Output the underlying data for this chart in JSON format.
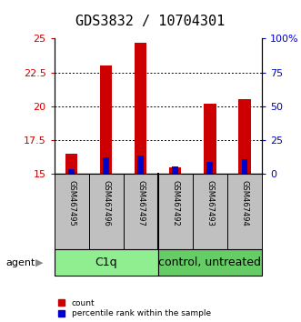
{
  "title": "GDS3832 / 10704301",
  "samples": [
    "GSM467495",
    "GSM467496",
    "GSM467497",
    "GSM467492",
    "GSM467493",
    "GSM467494"
  ],
  "count_values": [
    16.5,
    23.0,
    24.7,
    15.5,
    20.2,
    20.5
  ],
  "percentile_values": [
    15.38,
    16.2,
    16.35,
    15.52,
    15.9,
    16.1
  ],
  "ymin": 15,
  "ymax": 25,
  "yticks": [
    15,
    17.5,
    20,
    22.5,
    25
  ],
  "ytick_labels": [
    "15",
    "17.5",
    "20",
    "22.5",
    "25"
  ],
  "right_ytick_percents": [
    0,
    25,
    50,
    75,
    100
  ],
  "right_ytick_labels": [
    "0",
    "25",
    "50",
    "75",
    "100%"
  ],
  "groups": [
    {
      "label": "C1q",
      "span": [
        0,
        3
      ],
      "color": "#90EE90"
    },
    {
      "label": "control, untreated",
      "span": [
        3,
        6
      ],
      "color": "#66CC66"
    }
  ],
  "count_color": "#CC0000",
  "percentile_color": "#0000CC",
  "red_bar_width": 0.35,
  "blue_bar_width": 0.18,
  "group_box_color": "#C0C0C0",
  "title_fontsize": 11,
  "axis_color_left": "#CC0000",
  "axis_color_right": "#0000CC",
  "legend_count": "count",
  "legend_percentile": "percentile rank within the sample",
  "agent_label": "agent"
}
